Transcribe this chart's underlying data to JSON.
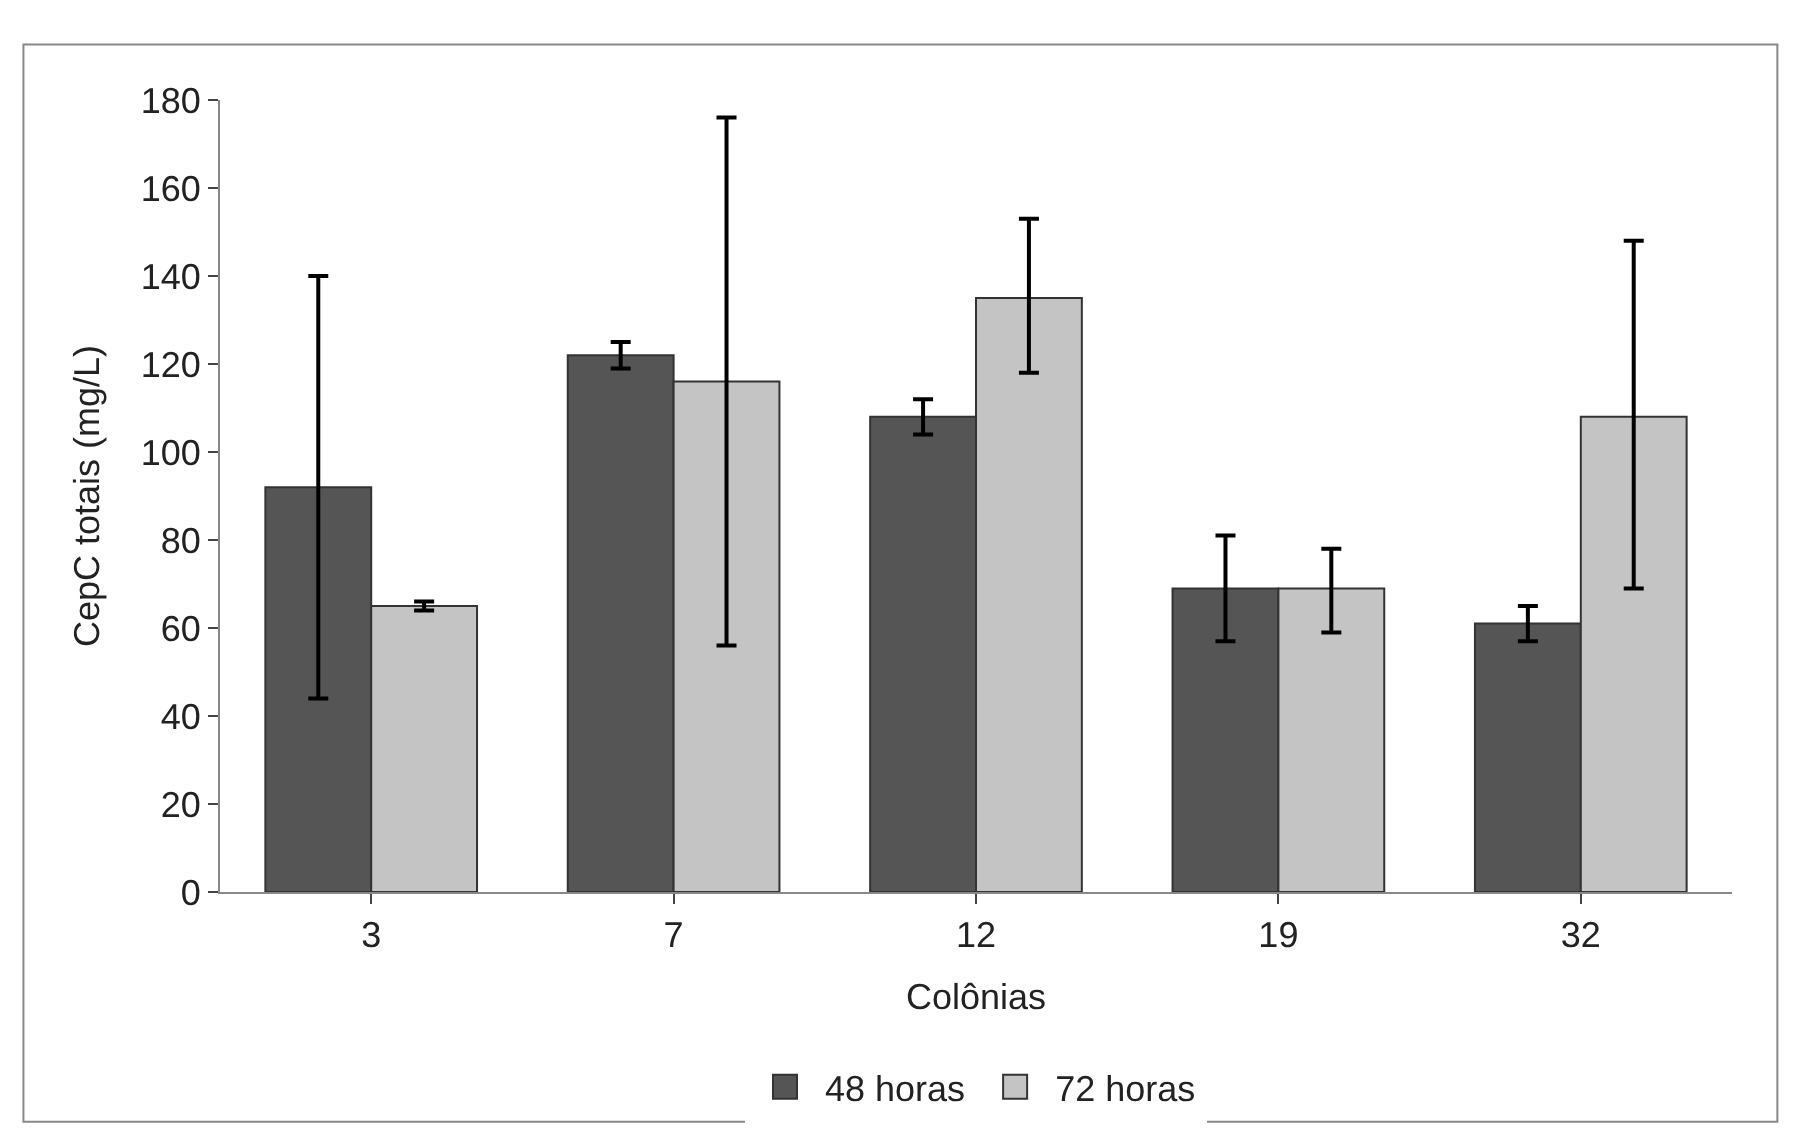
{
  "chart_data": {
    "type": "bar",
    "xlabel": "Colônias",
    "ylabel": "CepC totais (mg/L)",
    "categories": [
      "3",
      "7",
      "12",
      "19",
      "32"
    ],
    "series": [
      {
        "name": "48 horas",
        "color": "#555555",
        "values": [
          92,
          122,
          108,
          69,
          61
        ],
        "errors": [
          [
            44,
            140
          ],
          [
            119,
            125
          ],
          [
            104,
            112
          ],
          [
            57,
            81
          ],
          [
            57,
            65
          ]
        ]
      },
      {
        "name": "72 horas",
        "color": "#c4c4c4",
        "values": [
          65,
          116,
          135,
          69,
          108
        ],
        "errors": [
          [
            64,
            66
          ],
          [
            56,
            176
          ],
          [
            118,
            153
          ],
          [
            59,
            78
          ],
          [
            69,
            148
          ]
        ]
      }
    ],
    "ylim": [
      0,
      180
    ],
    "yticks": [
      0,
      20,
      40,
      60,
      80,
      100,
      120,
      140,
      160,
      180
    ],
    "legend": "bottom"
  }
}
